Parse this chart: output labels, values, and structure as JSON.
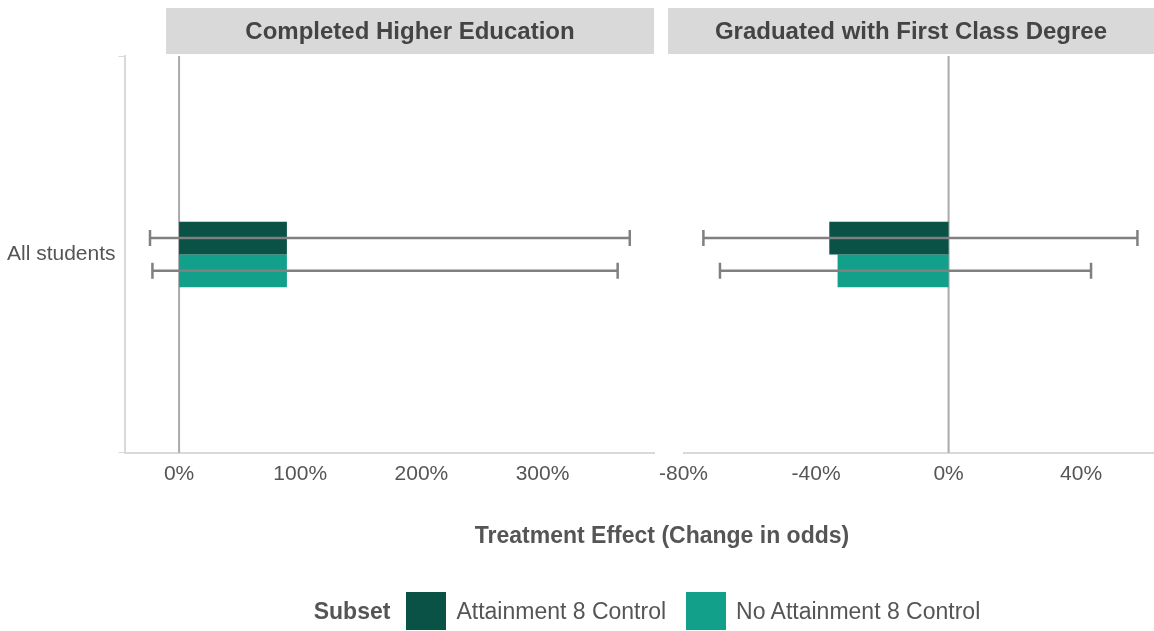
{
  "chart_data": [
    {
      "type": "bar",
      "orientation": "horizontal",
      "title": "Completed Higher Education",
      "xlabel": "Treatment Effect (Change in odds)",
      "legend": "bottom",
      "legend_title": "Subset",
      "categories": [
        "All students"
      ],
      "xlim": [
        -45,
        392
      ],
      "xticks": [
        {
          "value": 0,
          "label": "0%"
        },
        {
          "value": 100,
          "label": "100%"
        },
        {
          "value": 200,
          "label": "200%"
        },
        {
          "value": 300,
          "label": "300%"
        }
      ],
      "ref_lines": [
        {
          "axis": "x",
          "value": 0,
          "color": "#aaaaaa"
        }
      ],
      "series": [
        {
          "name": "Attainment 8 Control",
          "color": "#0a5146",
          "values": [
            89
          ],
          "errors": [
            [
              -24,
              372
            ]
          ]
        },
        {
          "name": "No Attainment 8 Control",
          "color": "#12a08a",
          "values": [
            89
          ],
          "errors": [
            [
              -22,
              362
            ]
          ]
        }
      ]
    },
    {
      "type": "bar",
      "orientation": "horizontal",
      "title": "Graduated with First Class Degree",
      "categories": [
        null
      ],
      "tick_labels": "x",
      "xlim": [
        -80,
        62
      ],
      "xticks": [
        {
          "value": -80,
          "label": "-80%"
        },
        {
          "value": -40,
          "label": "-40%"
        },
        {
          "value": 0,
          "label": "0%"
        },
        {
          "value": 40,
          "label": "40%"
        }
      ],
      "ref_lines": [
        {
          "axis": "x",
          "value": 0,
          "color": "#aaaaaa"
        }
      ],
      "series": [
        {
          "color": "#0a5146",
          "values": [
            -36
          ],
          "errors": [
            [
              -74,
              57
            ]
          ]
        },
        {
          "color": "#12a08a",
          "values": [
            -33.5
          ],
          "errors": [
            [
              -69,
              43
            ]
          ]
        }
      ]
    }
  ]
}
